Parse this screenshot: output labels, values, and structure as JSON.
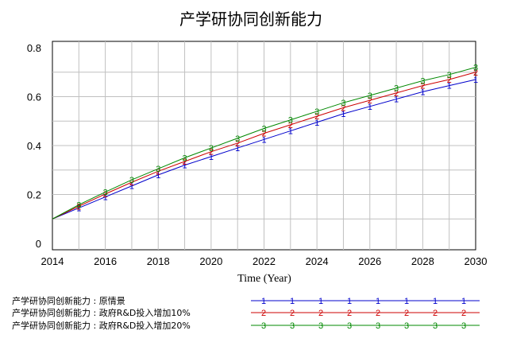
{
  "chart_data": {
    "type": "line",
    "title": "产学研协同创新能力",
    "xlabel": "Time (Year)",
    "ylabel": "",
    "xlim": [
      2014,
      2030
    ],
    "ylim": [
      0,
      0.8
    ],
    "x_ticks": [
      "2014",
      "2016",
      "2018",
      "2020",
      "2022",
      "2024",
      "2026",
      "2028",
      "2030"
    ],
    "y_ticks": [
      "0",
      "0.2",
      "0.4",
      "0.6",
      "0.8"
    ],
    "grid": true,
    "legend_position": "bottom",
    "x": [
      2014,
      2015,
      2016,
      2017,
      2018,
      2019,
      2020,
      2021,
      2022,
      2023,
      2024,
      2025,
      2026,
      2027,
      2028,
      2029,
      2030
    ],
    "series": [
      {
        "name": "产学研协同创新能力 : 原情景",
        "marker": "1",
        "color": "#0000cc",
        "values": [
          0.1,
          0.145,
          0.19,
          0.235,
          0.28,
          0.32,
          0.355,
          0.39,
          0.425,
          0.46,
          0.495,
          0.53,
          0.56,
          0.59,
          0.62,
          0.645,
          0.67
        ]
      },
      {
        "name": "产学研协同创新能力 : 政府R&D投入增加10%",
        "marker": "2",
        "color": "#cc0000",
        "values": [
          0.1,
          0.152,
          0.202,
          0.25,
          0.295,
          0.335,
          0.375,
          0.41,
          0.45,
          0.485,
          0.52,
          0.555,
          0.585,
          0.615,
          0.645,
          0.67,
          0.7
        ]
      },
      {
        "name": "产学研协同创新能力 : 政府R&D投入增加20%",
        "marker": "3",
        "color": "#008800",
        "values": [
          0.1,
          0.158,
          0.21,
          0.26,
          0.305,
          0.35,
          0.39,
          0.43,
          0.47,
          0.505,
          0.54,
          0.575,
          0.605,
          0.635,
          0.665,
          0.69,
          0.72
        ]
      }
    ]
  }
}
